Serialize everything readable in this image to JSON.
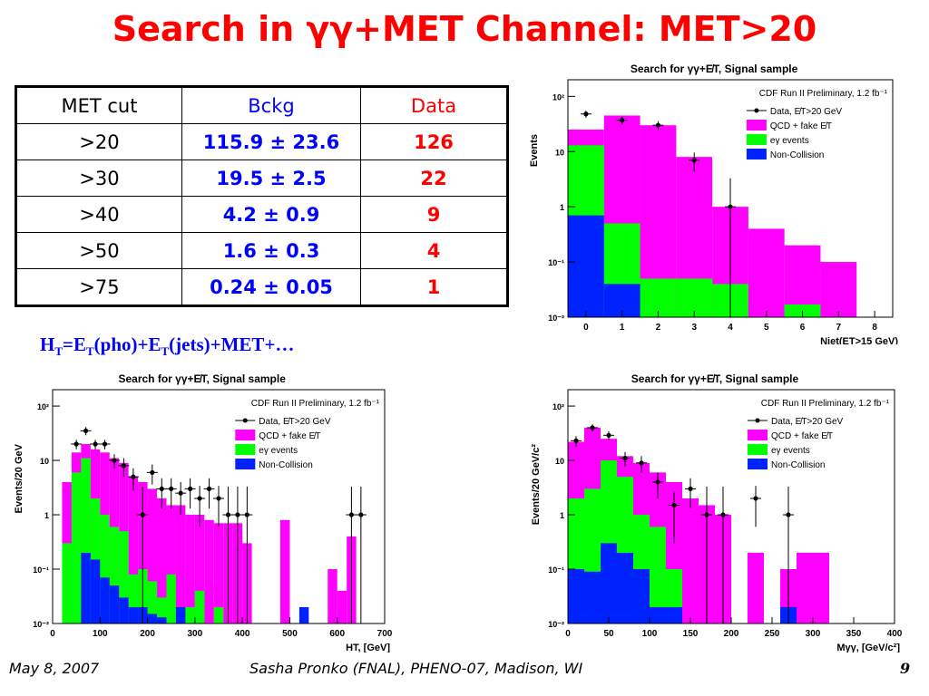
{
  "slide": {
    "title": "Search in γγ+MET Channel: MET>20",
    "formula": {
      "h": "H",
      "t1": "T",
      "eq": "=E",
      "t2": "T",
      "pho": "(pho)+E",
      "t3": "T",
      "rest": "(jets)+MET+…"
    },
    "footer": {
      "date": "May 8, 2007",
      "author": "Sasha Pronko (FNAL), PHENO-07, Madison, WI",
      "page": "9"
    }
  },
  "table": {
    "headers": [
      "MET cut",
      "Bckg",
      "Data"
    ],
    "rows": [
      [
        ">20",
        "115.9 ± 23.6",
        "126"
      ],
      [
        ">30",
        "19.5 ± 2.5",
        "22"
      ],
      [
        ">40",
        "4.2 ± 0.9",
        "9"
      ],
      [
        ">50",
        "1.6 ± 0.3",
        "4"
      ],
      [
        ">75",
        "0.24 ± 0.05",
        "1"
      ]
    ]
  },
  "colors": {
    "qcd": "#ff00ff",
    "egamma": "#00ff00",
    "noncoll": "#0022ff",
    "data": "#000000",
    "title": "#ff0000",
    "bckg": "#0000ff"
  },
  "chart_data": [
    {
      "type": "bar",
      "title": "Search for γγ+E̸T, Signal sample",
      "subtitle": "CDF Run II Preliminary, 1.2 fb⁻¹",
      "ylabel": "Events",
      "xlabel": "Njet(ET>15 GeV)",
      "xlim": [
        -0.5,
        8.5
      ],
      "ylim": [
        0.01,
        200
      ],
      "yscale": "log",
      "xticks": [
        0,
        1,
        2,
        3,
        4,
        5,
        6,
        7,
        8
      ],
      "yticks": [
        {
          "v": 0.01,
          "l": "10⁻²"
        },
        {
          "v": 0.1,
          "l": "10⁻¹"
        },
        {
          "v": 1,
          "l": "1"
        },
        {
          "v": 10,
          "l": "10"
        },
        {
          "v": 100,
          "l": "10²"
        }
      ],
      "legend": [
        "Data, E̸T>20 GeV",
        "QCD + fake E̸T",
        "eγ events",
        "Non-Collision"
      ],
      "bin_edges": [
        -0.5,
        0.5,
        1.5,
        2.5,
        3.5,
        4.5,
        5.5,
        6.5,
        7.5
      ],
      "stacks": {
        "qcd": [
          25,
          45,
          30,
          8,
          1,
          0.4,
          0.2,
          0.1
        ],
        "egamma": [
          13,
          0.5,
          0.05,
          0.05,
          0.04,
          0,
          0.017,
          0
        ],
        "noncoll": [
          0.7,
          0.04,
          0,
          0,
          0,
          0,
          0,
          0
        ]
      },
      "data_points": {
        "x": [
          0,
          1,
          2,
          3,
          4
        ],
        "y": [
          48,
          37,
          30,
          7,
          1
        ],
        "err_lo": [
          7,
          6,
          5.5,
          2.6,
          1
        ],
        "err_hi": [
          7,
          6,
          5.5,
          2.6,
          2.3
        ]
      }
    },
    {
      "type": "bar",
      "title": "Search for γγ+E̸T, Signal sample",
      "subtitle": "CDF Run II Preliminary, 1.2 fb⁻¹",
      "ylabel": "Events/20 GeV",
      "xlabel": "HT, [GeV]",
      "xlim": [
        0,
        700
      ],
      "ylim": [
        0.01,
        200
      ],
      "yscale": "log",
      "xticks": [
        0,
        100,
        200,
        300,
        400,
        500,
        600,
        700
      ],
      "yticks": [
        {
          "v": 0.01,
          "l": "10⁻²"
        },
        {
          "v": 0.1,
          "l": "10⁻¹"
        },
        {
          "v": 1,
          "l": "1"
        },
        {
          "v": 10,
          "l": "10"
        },
        {
          "v": 100,
          "l": "10²"
        }
      ],
      "legend": [
        "Data, E̸T>20 GeV",
        "QCD + fake E̸T",
        "eγ events",
        "Non-Collision"
      ],
      "bin_edges": [
        20,
        40,
        60,
        80,
        100,
        120,
        140,
        160,
        180,
        200,
        220,
        240,
        260,
        280,
        300,
        320,
        340,
        360,
        380,
        400,
        420,
        440,
        460,
        480,
        500,
        520,
        540,
        560,
        580,
        600,
        620,
        640,
        660
      ],
      "stacks": {
        "qcd": [
          4,
          14,
          20,
          16,
          14,
          11,
          9,
          5,
          4,
          3,
          2,
          1.5,
          1.5,
          1,
          1,
          0.8,
          0.7,
          0.7,
          0.7,
          0.3,
          0,
          0,
          0,
          0.8,
          0,
          0,
          0,
          0,
          0.1,
          0.04,
          0.4,
          0
        ],
        "egamma": [
          0.3,
          6,
          11,
          2,
          1,
          0.6,
          0.5,
          0.08,
          0.1,
          0.06,
          0.03,
          0.08,
          0.02,
          0.02,
          0.04,
          0,
          0.02,
          0,
          0,
          0,
          0,
          0,
          0,
          0,
          0,
          0,
          0,
          0,
          0,
          0,
          0,
          0
        ],
        "noncoll": [
          0,
          0,
          0.2,
          0.15,
          0.07,
          0.05,
          0.03,
          0.02,
          0.02,
          0.015,
          0.013,
          0,
          0.02,
          0,
          0,
          0,
          0,
          0,
          0,
          0,
          0,
          0,
          0,
          0,
          0,
          0.02,
          0,
          0,
          0,
          0,
          0,
          0
        ]
      },
      "data_points": {
        "x": [
          50,
          70,
          90,
          110,
          130,
          150,
          170,
          190,
          210,
          230,
          250,
          270,
          290,
          310,
          330,
          350,
          370,
          390,
          410,
          630,
          650
        ],
        "y": [
          20,
          35,
          20,
          20,
          10,
          8,
          5,
          1,
          6,
          3,
          3,
          2.5,
          3,
          2,
          3,
          2,
          1,
          1,
          1,
          1,
          1
        ],
        "err_lo": [
          4,
          6,
          4,
          4,
          3,
          3,
          2.2,
          1,
          2.4,
          1.7,
          1.7,
          1.5,
          1.7,
          1.4,
          1.7,
          1.4,
          1,
          1,
          1,
          1,
          1
        ],
        "err_hi": [
          4,
          6,
          4,
          4,
          3,
          3,
          2.2,
          2.3,
          2.4,
          1.7,
          1.7,
          1.5,
          1.7,
          1.4,
          1.7,
          1.4,
          2.3,
          2.3,
          2.3,
          2.3,
          2.3
        ]
      }
    },
    {
      "type": "bar",
      "title": "Search for γγ+E̸T, Signal sample",
      "subtitle": "CDF Run II Preliminary, 1.2 fb⁻¹",
      "ylabel": "Events/20 GeV/c²",
      "xlabel": "Mγγ, [GeV/c²]",
      "xlim": [
        0,
        400
      ],
      "ylim": [
        0.01,
        200
      ],
      "yscale": "log",
      "xticks": [
        0,
        50,
        100,
        150,
        200,
        250,
        300,
        350,
        400
      ],
      "yticks": [
        {
          "v": 0.01,
          "l": "10⁻²"
        },
        {
          "v": 0.1,
          "l": "10⁻¹"
        },
        {
          "v": 1,
          "l": "1"
        },
        {
          "v": 10,
          "l": "10"
        },
        {
          "v": 100,
          "l": "10²"
        }
      ],
      "legend": [
        "Data, E̸T>20 GeV",
        "QCD + fake E̸T",
        "eγ events",
        "Non-Collision"
      ],
      "bin_edges": [
        0,
        20,
        40,
        60,
        80,
        100,
        120,
        140,
        160,
        180,
        200,
        220,
        240,
        260,
        280,
        300,
        320,
        340
      ],
      "stacks": {
        "qcd": [
          22,
          40,
          25,
          12,
          9,
          6,
          4,
          2,
          1.5,
          1,
          0,
          0.2,
          0,
          0.1,
          0.2,
          0.2,
          0
        ],
        "egamma": [
          2,
          3,
          10,
          5,
          1,
          0.6,
          0.1,
          0,
          0,
          0,
          0,
          0,
          0,
          0,
          0,
          0,
          0
        ],
        "noncoll": [
          0.1,
          0.09,
          0.3,
          0.2,
          0.1,
          0.02,
          0.02,
          0,
          0,
          0,
          0,
          0,
          0,
          0.02,
          0,
          0,
          0
        ]
      },
      "data_points": {
        "x": [
          10,
          30,
          50,
          70,
          90,
          110,
          130,
          150,
          170,
          190,
          230,
          270
        ],
        "y": [
          23,
          40,
          29,
          11,
          9,
          4,
          1.5,
          3,
          1,
          1,
          2,
          1
        ],
        "err_lo": [
          5,
          6,
          5.4,
          3.3,
          3,
          2,
          1.2,
          1.7,
          1,
          1,
          1.4,
          1
        ],
        "err_hi": [
          5,
          6,
          5.4,
          3.3,
          3,
          2,
          1.2,
          1.7,
          2.3,
          2.3,
          1.4,
          2.3
        ]
      }
    }
  ]
}
